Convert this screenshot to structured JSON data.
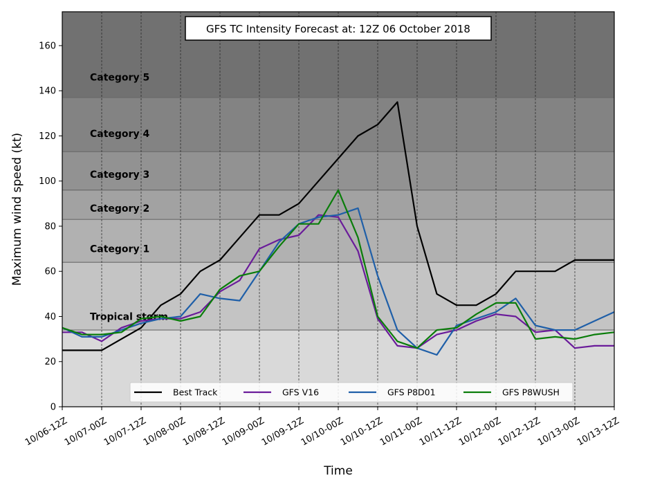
{
  "chart_data": {
    "type": "line",
    "title": "GFS TC Intensity Forecast at: 12Z 06 October 2018",
    "xlabel": "Time",
    "ylabel": "Maximum wind speed (kt)",
    "ylim": [
      0,
      175
    ],
    "yticks": [
      0,
      20,
      40,
      60,
      80,
      100,
      120,
      140,
      160
    ],
    "xticks": [
      "10/06-12Z",
      "10/07-00Z",
      "10/07-12Z",
      "10/08-00Z",
      "10/08-12Z",
      "10/09-00Z",
      "10/09-12Z",
      "10/10-00Z",
      "10/10-12Z",
      "10/11-00Z",
      "10/11-12Z",
      "10/12-00Z",
      "10/12-12Z",
      "10/13-00Z",
      "10/13-12Z"
    ],
    "x_hours_since_first_tick_range": [
      0,
      168
    ],
    "grid": "vertical dashed at each x tick",
    "legend_position": "bottom-center",
    "intensity_bands": [
      {
        "label": "Tropical storm",
        "from": 34,
        "to": 64,
        "color": "#c4c4c4"
      },
      {
        "label": "Category 1",
        "from": 64,
        "to": 83,
        "color": "#b1b1b1"
      },
      {
        "label": "Category 2",
        "from": 83,
        "to": 96,
        "color": "#a2a2a2"
      },
      {
        "label": "Category 3",
        "from": 96,
        "to": 113,
        "color": "#929292"
      },
      {
        "label": "Category 4",
        "from": 113,
        "to": 137,
        "color": "#838383"
      },
      {
        "label": "Category 5",
        "from": 137,
        "to": 175,
        "color": "#717171"
      }
    ],
    "below_band_color": "#d9d9d9",
    "series": [
      {
        "name": "Best Track",
        "color": "#000000",
        "x": [
          0,
          12,
          18,
          24,
          30,
          36,
          42,
          48,
          54,
          60,
          66,
          72,
          78,
          84,
          90,
          96,
          102,
          108,
          114,
          120,
          126,
          132,
          138,
          144,
          150,
          156,
          162,
          168
        ],
        "y": [
          25,
          25,
          30,
          35,
          45,
          50,
          60,
          65,
          75,
          85,
          85,
          90,
          100,
          110,
          120,
          125,
          135,
          80,
          50,
          45,
          45,
          50,
          60,
          60,
          60,
          65,
          65,
          65
        ]
      },
      {
        "name": "GFS V16",
        "color": "#6a1b9a",
        "x": [
          0,
          6,
          12,
          18,
          24,
          30,
          36,
          42,
          48,
          54,
          60,
          66,
          72,
          78,
          84,
          90,
          96,
          102,
          108,
          114,
          120,
          126,
          132,
          138,
          144,
          150,
          156,
          162,
          168
        ],
        "y": [
          33,
          33,
          29,
          35,
          38,
          39,
          39,
          42,
          51,
          56,
          70,
          74,
          76,
          85,
          84,
          69,
          39,
          27,
          26,
          32,
          34,
          38,
          41,
          40,
          33,
          34,
          26,
          27,
          27
        ]
      },
      {
        "name": "GFS P8D01",
        "color": "#1f5fa8",
        "x": [
          0,
          6,
          12,
          18,
          24,
          30,
          36,
          42,
          48,
          54,
          60,
          66,
          72,
          78,
          84,
          90,
          96,
          102,
          108,
          114,
          120,
          126,
          132,
          138,
          144,
          150,
          156,
          162,
          168
        ],
        "y": [
          35,
          31,
          31,
          34,
          37,
          39,
          40,
          50,
          48,
          47,
          60,
          73,
          81,
          84,
          85,
          88,
          58,
          34,
          26,
          23,
          36,
          39,
          42,
          48,
          36,
          34,
          34,
          38,
          42
        ]
      },
      {
        "name": "GFS P8WUSH",
        "color": "#0a7d0a",
        "x": [
          0,
          6,
          12,
          18,
          24,
          30,
          36,
          42,
          48,
          54,
          60,
          66,
          72,
          78,
          84,
          90,
          96,
          102,
          108,
          114,
          120,
          126,
          132,
          138,
          144,
          150,
          156,
          162,
          168
        ],
        "y": [
          35,
          32,
          32,
          33,
          39,
          40,
          38,
          40,
          52,
          58,
          60,
          71,
          81,
          81,
          96,
          75,
          40,
          29,
          26,
          34,
          35,
          41,
          46,
          46,
          30,
          31,
          30,
          32,
          33
        ]
      }
    ]
  }
}
